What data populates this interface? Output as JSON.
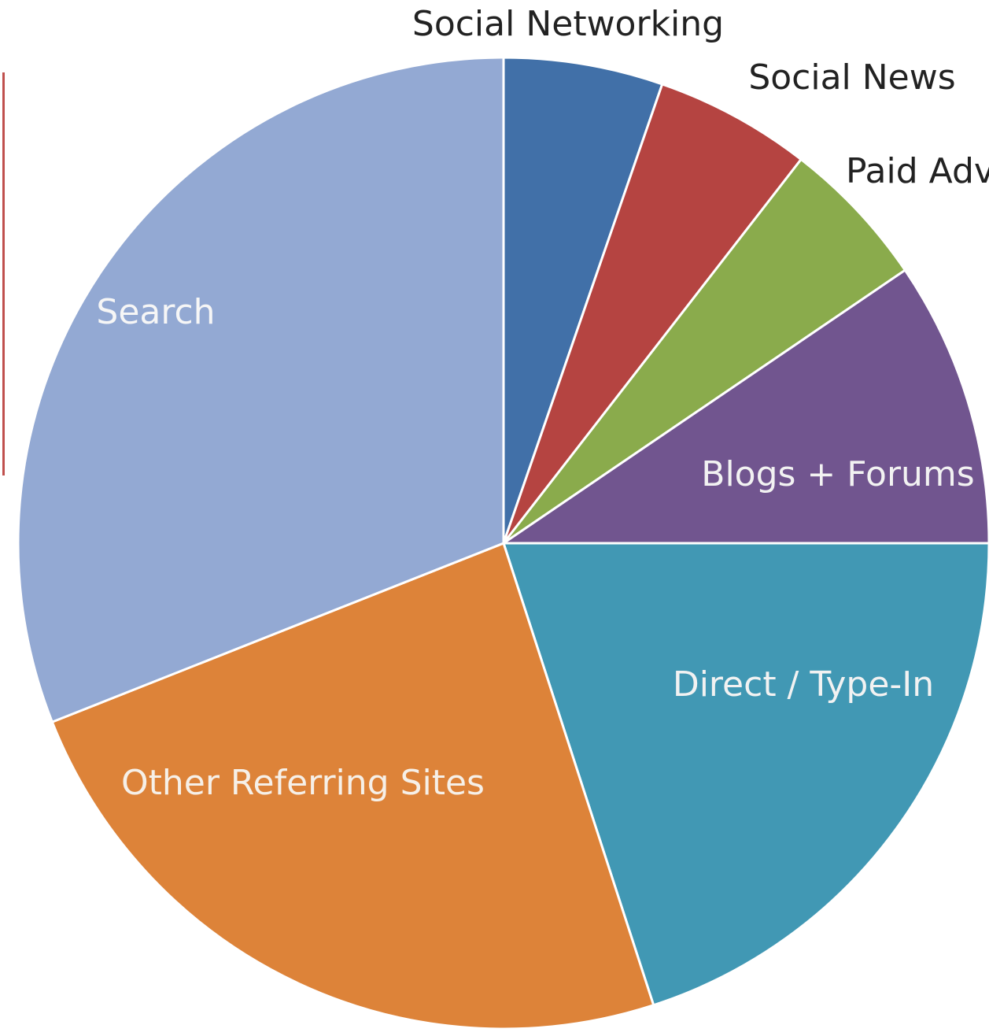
{
  "chart_data": {
    "type": "pie",
    "title": "",
    "start_angle_deg": 0,
    "direction": "clockwise",
    "slices": [
      {
        "name": "Social Networking",
        "value": 5.3,
        "color": "#4170a8",
        "label_inside": false,
        "label_color": "#222222"
      },
      {
        "name": "Social News",
        "value": 5.2,
        "color": "#b54441",
        "label_inside": false,
        "label_color": "#222222"
      },
      {
        "name": "Paid Adv",
        "value": 5.0,
        "color": "#8aab4c",
        "label_inside": false,
        "label_color": "#222222"
      },
      {
        "name": "Blogs + Forums",
        "value": 9.5,
        "color": "#71558f",
        "label_inside": true,
        "label_color": "#f2f2f2"
      },
      {
        "name": "Direct / Type-In",
        "value": 20.0,
        "color": "#4198b4",
        "label_inside": true,
        "label_color": "#f2f2f2"
      },
      {
        "name": "Other Referring Sites",
        "value": 24.0,
        "color": "#dd8339",
        "label_inside": true,
        "label_color": "#f6f0e8"
      },
      {
        "name": "Search",
        "value": 31.0,
        "color": "#93a9d3",
        "label_inside": true,
        "label_color": "#f6f6f6"
      }
    ],
    "legend": "none"
  }
}
